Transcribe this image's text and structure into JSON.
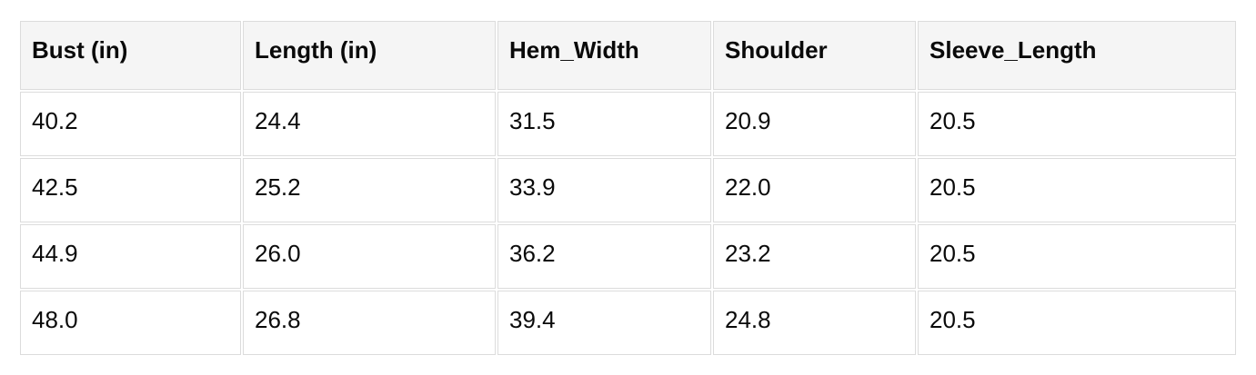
{
  "page": {
    "background_color": "#ffffff",
    "text_color": "#0a0a0a"
  },
  "table_style": {
    "header_background_color": "#f5f5f5",
    "cell_background_color": "#ffffff",
    "border_color": "#dcdcdc"
  },
  "chart_data": {
    "type": "table",
    "title": "",
    "columns": [
      "Bust (in)",
      "Length (in)",
      "Hem_Width",
      "Shoulder",
      "Sleeve_Length"
    ],
    "rows": [
      [
        "40.2",
        "24.4",
        "31.5",
        "20.9",
        "20.5"
      ],
      [
        "42.5",
        "25.2",
        "33.9",
        "22.0",
        "20.5"
      ],
      [
        "44.9",
        "26.0",
        "36.2",
        "23.2",
        "20.5"
      ],
      [
        "48.0",
        "26.8",
        "39.4",
        "24.8",
        "20.5"
      ]
    ]
  }
}
